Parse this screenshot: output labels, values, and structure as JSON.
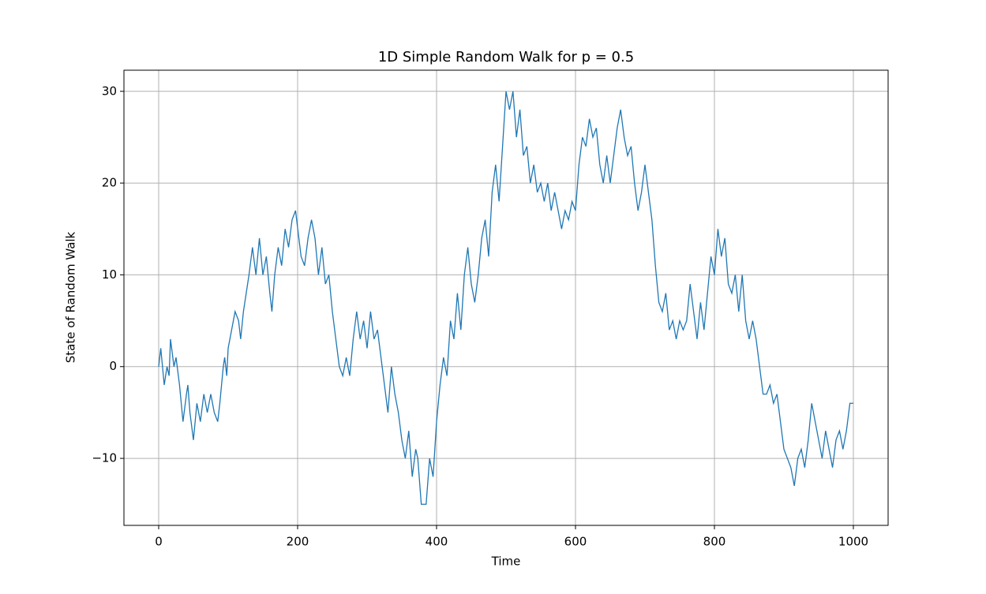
{
  "chart_data": {
    "type": "line",
    "title": "1D Simple Random Walk for p = 0.5",
    "x_label": "Time",
    "y_label": "State of Random Walk",
    "color": "#1f77b4",
    "grid": true,
    "xlim": [
      -50,
      1050
    ],
    "ylim": [
      -17.3,
      32.3
    ],
    "xticks": [
      0,
      200,
      400,
      600,
      800,
      1000
    ],
    "yticks": [
      {
        "value": -10,
        "label": "−10"
      },
      0,
      10,
      20,
      30
    ],
    "x": [
      0,
      3,
      8,
      12,
      15,
      17,
      22,
      25,
      30,
      35,
      40,
      42,
      45,
      50,
      55,
      60,
      65,
      70,
      75,
      80,
      85,
      88,
      93,
      95,
      98,
      100,
      105,
      110,
      115,
      118,
      122,
      130,
      135,
      140,
      145,
      150,
      155,
      160,
      163,
      167,
      172,
      177,
      182,
      187,
      192,
      197,
      205,
      210,
      215,
      220,
      225,
      230,
      235,
      240,
      245,
      250,
      255,
      260,
      265,
      270,
      275,
      280,
      285,
      290,
      295,
      300,
      305,
      310,
      315,
      320,
      325,
      330,
      335,
      340,
      345,
      350,
      355,
      360,
      365,
      370,
      373,
      378,
      385,
      390,
      395,
      400,
      405,
      410,
      415,
      420,
      425,
      430,
      435,
      440,
      445,
      450,
      455,
      460,
      465,
      470,
      475,
      480,
      485,
      490,
      495,
      500,
      505,
      510,
      515,
      520,
      525,
      530,
      535,
      540,
      545,
      550,
      555,
      560,
      565,
      570,
      575,
      580,
      585,
      590,
      595,
      600,
      605,
      610,
      615,
      620,
      625,
      630,
      635,
      640,
      645,
      650,
      655,
      660,
      665,
      670,
      675,
      680,
      685,
      690,
      695,
      700,
      705,
      710,
      715,
      720,
      725,
      730,
      735,
      740,
      745,
      750,
      755,
      760,
      765,
      770,
      775,
      780,
      785,
      790,
      795,
      800,
      805,
      810,
      815,
      820,
      825,
      830,
      835,
      840,
      845,
      850,
      855,
      860,
      865,
      870,
      875,
      880,
      885,
      890,
      895,
      900,
      905,
      910,
      915,
      920,
      925,
      930,
      935,
      940,
      945,
      950,
      955,
      960,
      965,
      970,
      975,
      980,
      985,
      990,
      995,
      1000
    ],
    "values": [
      0,
      2,
      -2,
      0,
      -1,
      3,
      0,
      1,
      -2,
      -6,
      -3,
      -2,
      -5,
      -8,
      -4,
      -6,
      -3,
      -5,
      -3,
      -5,
      -6,
      -4,
      0,
      1,
      -1,
      2,
      4,
      6,
      5,
      3,
      6,
      10,
      13,
      10,
      14,
      10,
      12,
      8,
      6,
      10,
      13,
      11,
      15,
      13,
      16,
      17,
      12,
      11,
      14,
      16,
      14,
      10,
      13,
      9,
      10,
      6,
      3,
      0,
      -1,
      1,
      -1,
      3,
      6,
      3,
      5,
      2,
      6,
      3,
      4,
      1,
      -2,
      -5,
      0,
      -3,
      -5,
      -8,
      -10,
      -7,
      -12,
      -9,
      -10,
      -15,
      -15,
      -10,
      -12,
      -6,
      -2,
      1,
      -1,
      5,
      3,
      8,
      4,
      10,
      13,
      9,
      7,
      10,
      14,
      16,
      12,
      19,
      22,
      18,
      24,
      30,
      28,
      30,
      25,
      28,
      23,
      24,
      20,
      22,
      19,
      20,
      18,
      20,
      17,
      19,
      17,
      15,
      17,
      16,
      18,
      17,
      22,
      25,
      24,
      27,
      25,
      26,
      22,
      20,
      23,
      20,
      23,
      26,
      28,
      25,
      23,
      24,
      20,
      17,
      19,
      22,
      19,
      16,
      11,
      7,
      6,
      8,
      4,
      5,
      3,
      5,
      4,
      5,
      9,
      6,
      3,
      7,
      4,
      8,
      12,
      10,
      15,
      12,
      14,
      9,
      8,
      10,
      6,
      10,
      5,
      3,
      5,
      3,
      0,
      -3,
      -3,
      -2,
      -4,
      -3,
      -6,
      -9,
      -10,
      -11,
      -13,
      -10,
      -9,
      -11,
      -8,
      -4,
      -6,
      -8,
      -10,
      -7,
      -9,
      -11,
      -8,
      -7,
      -9,
      -7,
      -4,
      -4
    ]
  }
}
